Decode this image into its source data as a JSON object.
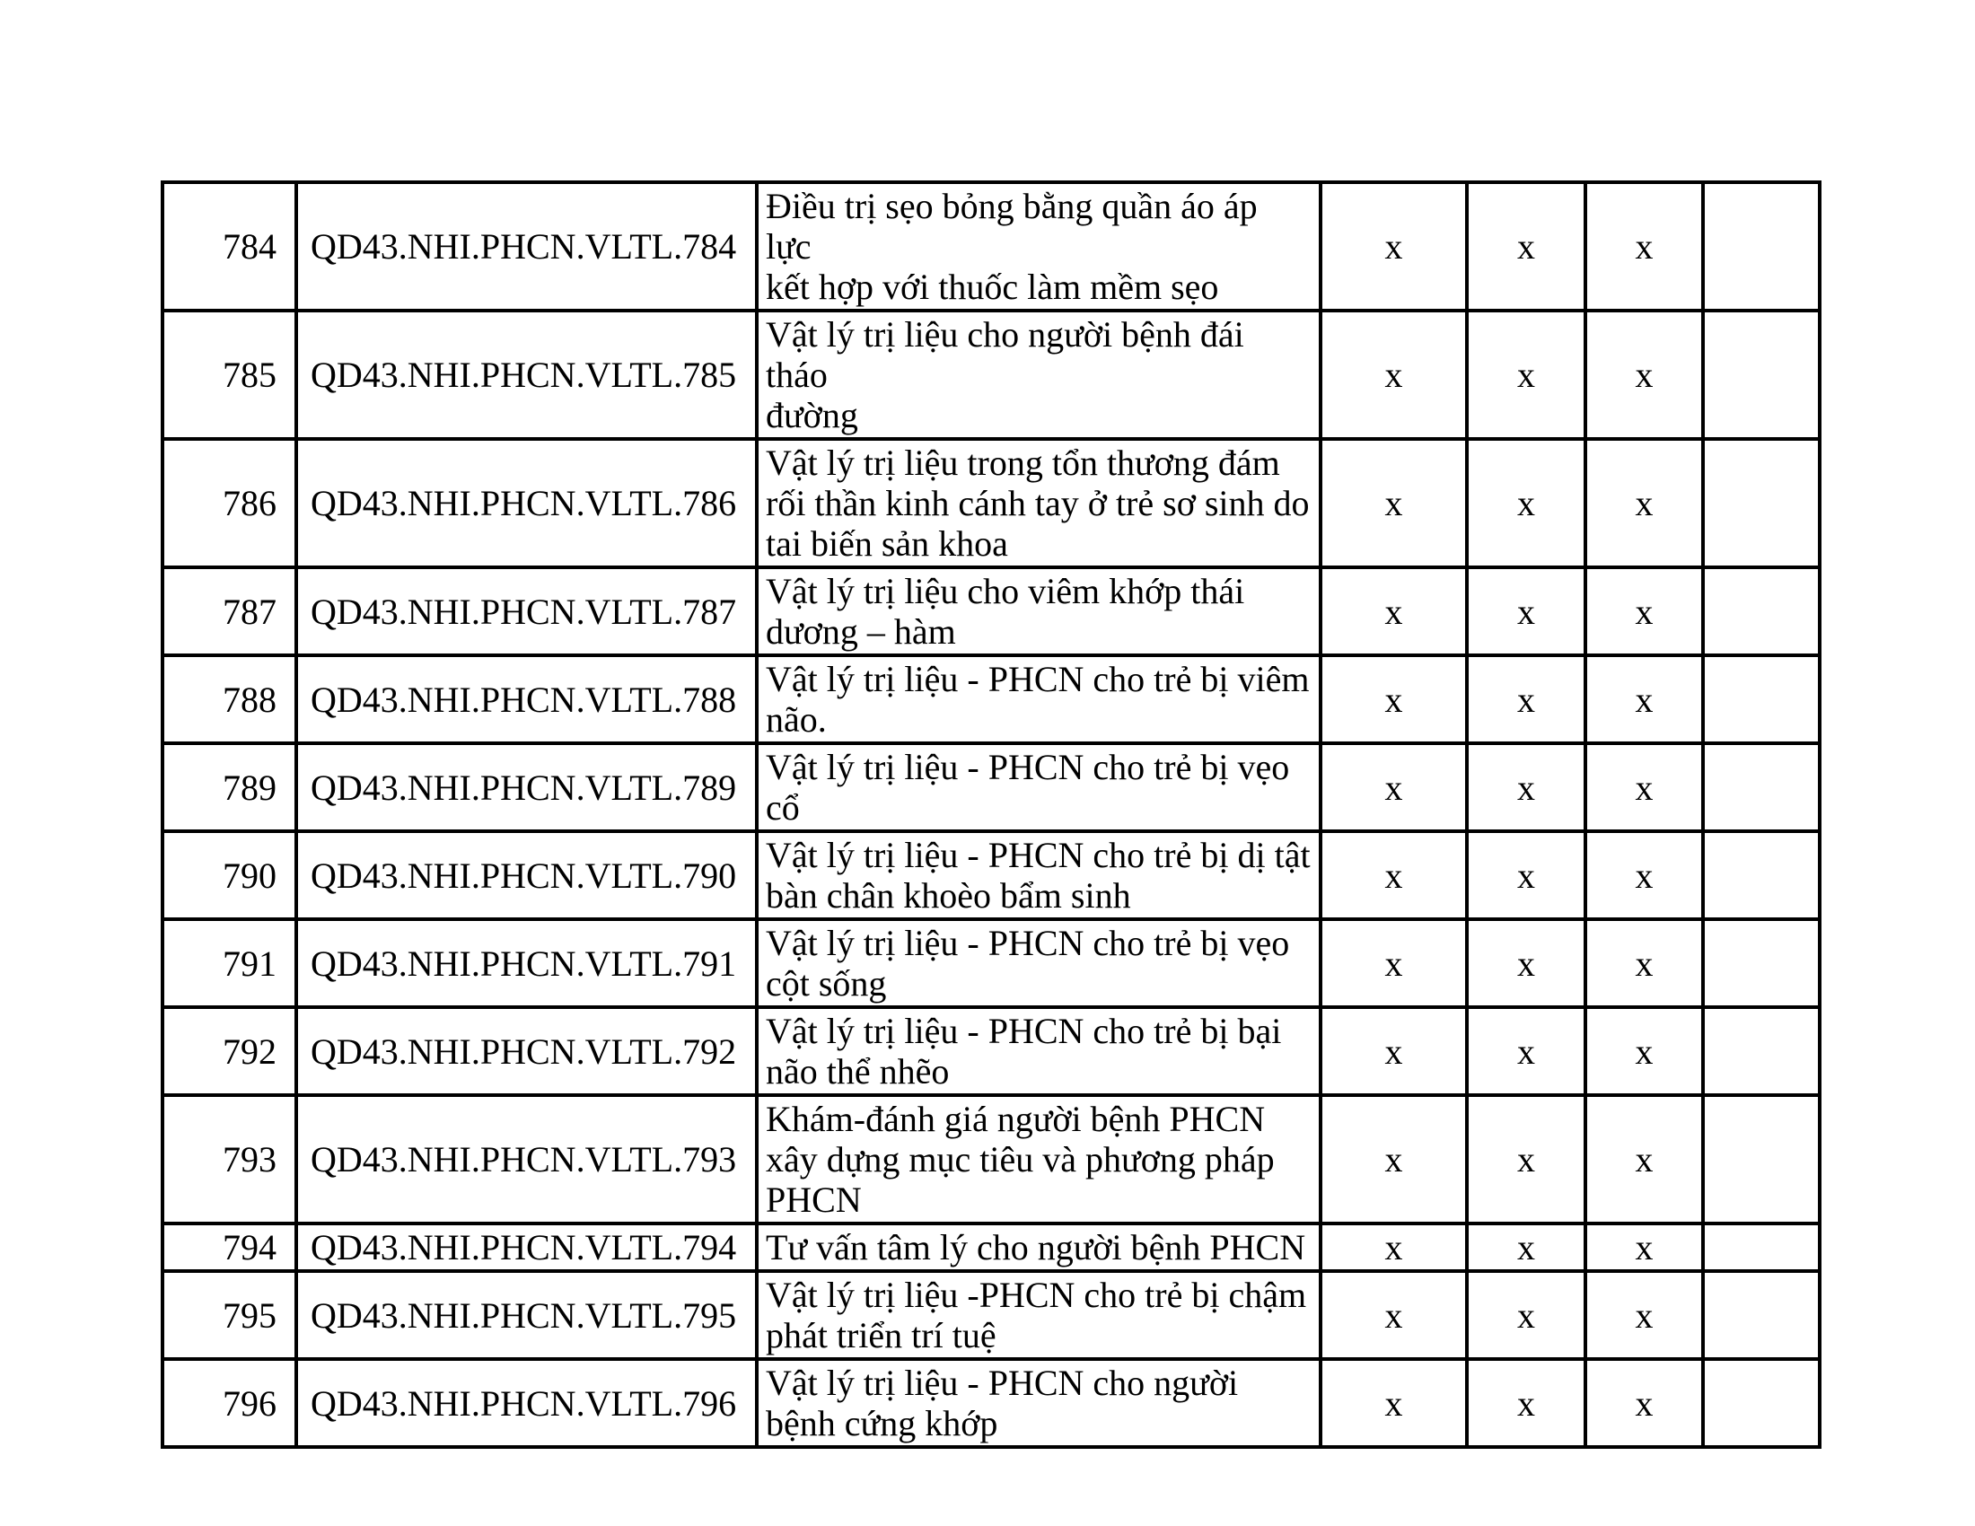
{
  "page": {
    "background_color": "#ffffff",
    "text_color": "#000000",
    "border_color": "#000000"
  },
  "table": {
    "mark_char": "x",
    "rows": [
      {
        "no": "784",
        "code": "QD43.NHI.PHCN.VLTL.784",
        "desc": "Điều trị sẹo bỏng bằng quần áo áp lực\nkết hợp với thuốc làm mềm sẹo",
        "marks": [
          "x",
          "x",
          "x",
          ""
        ]
      },
      {
        "no": "785",
        "code": "QD43.NHI.PHCN.VLTL.785",
        "desc": "Vật lý trị liệu cho người bệnh đái tháo\nđường",
        "marks": [
          "x",
          "x",
          "x",
          ""
        ]
      },
      {
        "no": "786",
        "code": "QD43.NHI.PHCN.VLTL.786",
        "desc": "Vật lý trị liệu trong tổn thương đám\nrối thần kinh cánh tay ở trẻ sơ sinh do\ntai biến sản khoa",
        "marks": [
          "x",
          "x",
          "x",
          ""
        ]
      },
      {
        "no": "787",
        "code": "QD43.NHI.PHCN.VLTL.787",
        "desc": "Vật lý trị liệu cho viêm khớp thái\ndương – hàm",
        "marks": [
          "x",
          "x",
          "x",
          ""
        ]
      },
      {
        "no": "788",
        "code": "QD43.NHI.PHCN.VLTL.788",
        "desc": "Vật lý trị liệu - PHCN cho trẻ bị viêm\nnão.",
        "marks": [
          "x",
          "x",
          "x",
          ""
        ]
      },
      {
        "no": "789",
        "code": "QD43.NHI.PHCN.VLTL.789",
        "desc": "Vật lý trị liệu - PHCN cho trẻ bị vẹo\ncổ",
        "marks": [
          "x",
          "x",
          "x",
          ""
        ]
      },
      {
        "no": "790",
        "code": "QD43.NHI.PHCN.VLTL.790",
        "desc": "Vật lý trị liệu - PHCN cho trẻ bị dị tật\nbàn chân khoèo bẩm sinh",
        "marks": [
          "x",
          "x",
          "x",
          ""
        ]
      },
      {
        "no": "791",
        "code": "QD43.NHI.PHCN.VLTL.791",
        "desc": "Vật lý trị liệu - PHCN cho trẻ bị vẹo\ncột sống",
        "marks": [
          "x",
          "x",
          "x",
          ""
        ]
      },
      {
        "no": "792",
        "code": "QD43.NHI.PHCN.VLTL.792",
        "desc": "Vật lý trị liệu - PHCN cho trẻ bị bại\nnão thể nhẽo",
        "marks": [
          "x",
          "x",
          "x",
          ""
        ]
      },
      {
        "no": "793",
        "code": "QD43.NHI.PHCN.VLTL.793",
        "desc": "Khám-đánh giá người bệnh PHCN\nxây dựng mục tiêu và phương pháp\nPHCN",
        "marks": [
          "x",
          "x",
          "x",
          ""
        ]
      },
      {
        "no": "794",
        "code": "QD43.NHI.PHCN.VLTL.794",
        "desc": "Tư vấn tâm lý cho người bệnh PHCN",
        "marks": [
          "x",
          "x",
          "x",
          ""
        ]
      },
      {
        "no": "795",
        "code": "QD43.NHI.PHCN.VLTL.795",
        "desc": "Vật lý trị liệu -PHCN cho trẻ bị chậm\nphát triển trí tuệ",
        "marks": [
          "x",
          "x",
          "x",
          ""
        ]
      },
      {
        "no": "796",
        "code": "QD43.NHI.PHCN.VLTL.796",
        "desc": "Vật lý trị liệu - PHCN cho người\nbệnh cứng khớp",
        "marks": [
          "x",
          "x",
          "x",
          ""
        ]
      }
    ]
  }
}
